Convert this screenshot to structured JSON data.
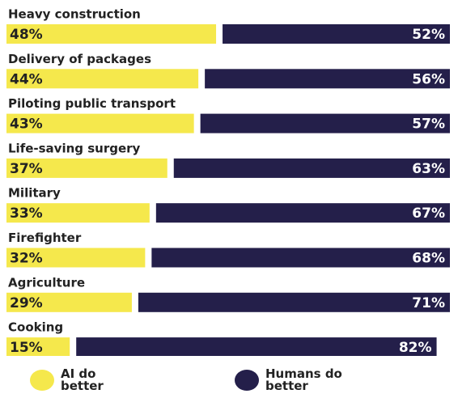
{
  "chart_data": {
    "type": "stacked-bar-100",
    "categories": [
      "Heavy construction",
      "Delivery of packages",
      "Piloting public transport",
      "Life-saving surgery",
      "Military",
      "Firefighter",
      "Agriculture",
      "Cooking"
    ],
    "series": [
      {
        "name": "AI do better",
        "color": "#f5e84c",
        "values": [
          48,
          44,
          43,
          37,
          33,
          32,
          29,
          15
        ],
        "value_labels": [
          "48%",
          "44%",
          "43%",
          "37%",
          "33%",
          "32%",
          "29%",
          "15%"
        ]
      },
      {
        "name": "Humans do better",
        "color": "#241f4a",
        "values": [
          52,
          56,
          57,
          63,
          67,
          68,
          71,
          82
        ],
        "value_labels": [
          "52%",
          "56%",
          "57%",
          "63%",
          "67%",
          "68%",
          "71%",
          "82%"
        ]
      }
    ],
    "legend": "bottom"
  }
}
